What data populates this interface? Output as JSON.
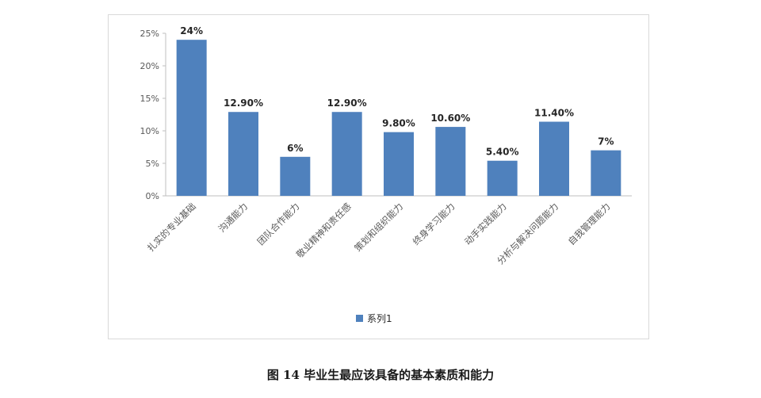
{
  "chart_data": {
    "type": "bar",
    "categories": [
      "扎实的专业基础",
      "沟通能力",
      "团队合作能力",
      "敬业精神和责任感",
      "策划和组织能力",
      "终身学习能力",
      "动手实践能力",
      "分析与解决问题能力",
      "自我管理能力"
    ],
    "series": [
      {
        "name": "系列1",
        "values": [
          24,
          12.9,
          6,
          12.9,
          9.8,
          10.6,
          5.4,
          11.4,
          7
        ],
        "labels": [
          "24%",
          "12.90%",
          "6%",
          "12.90%",
          "9.80%",
          "10.60%",
          "5.40%",
          "11.40%",
          "7%"
        ]
      }
    ],
    "yticks": [
      "0%",
      "5%",
      "10%",
      "15%",
      "20%",
      "25%"
    ],
    "ylim": [
      0,
      25
    ],
    "grid": false,
    "legend": "bottom",
    "bar_color": "#4f81bd"
  },
  "caption": "图 14  毕业生最应该具备的基本素质和能力"
}
